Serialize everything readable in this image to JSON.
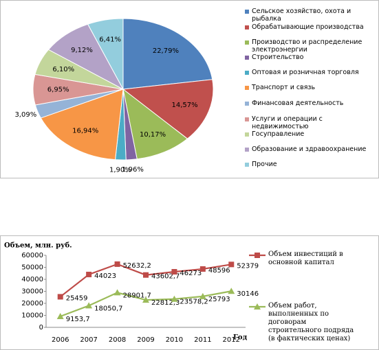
{
  "chart_data": [
    {
      "type": "pie",
      "categories": [
        "Сельское хозяйство, охота и рыбалка",
        "Обрабатывающие производства",
        "Производство и распределение электроэнергии",
        "Строительство",
        "Оптовая и розничная торговля",
        "Транспорт и связь",
        "Финансовая деятельность",
        "Услуги и операции с недвижимостью",
        "Госуправление",
        "Образование и здравоохранение",
        "Прочие"
      ],
      "values": [
        22.79,
        14.57,
        10.17,
        1.96,
        1.9,
        16.94,
        3.09,
        6.95,
        6.1,
        9.12,
        6.41
      ],
      "value_labels": [
        "22,79%",
        "14,57%",
        "10,17%",
        "1,96%",
        "1,90%",
        "16,94%",
        "3,09%",
        "6,95%",
        "6,10%",
        "9,12%",
        "6,41%"
      ],
      "colors": [
        "#4f81bd",
        "#c0504d",
        "#9bbb59",
        "#8064a2",
        "#4bacc6",
        "#f79646",
        "#95b3d7",
        "#d99694",
        "#c3d69b",
        "#b3a2c7",
        "#93cddd"
      ],
      "legend": "right"
    },
    {
      "type": "line",
      "y_label": "Объем, млн. руб.",
      "x_label": "Год",
      "categories": [
        "2006",
        "2007",
        "2008",
        "2009",
        "2010",
        "2011",
        "2012"
      ],
      "series": [
        {
          "name": "Объем инвестиций в основной капитал",
          "color": "#be4b48",
          "marker": "square",
          "values": [
            25459,
            44023,
            52632.2,
            43602.7,
            46273,
            48596,
            52379
          ],
          "value_labels": [
            "25459",
            "44023",
            "52632,2",
            "43602,7",
            "46273",
            "48596",
            "52379"
          ]
        },
        {
          "name": "Объем работ, выполненных по договорам строительного подряда (в фактических ценах)",
          "color": "#9bbb59",
          "marker": "triangle",
          "values": [
            9153.7,
            18050.7,
            28901.7,
            22812.3,
            23578.2,
            25793,
            30146
          ],
          "value_labels": [
            "9153,7",
            "18050,7",
            "28901,7",
            "22812,3",
            "23578,2",
            "25793",
            "30146"
          ]
        }
      ],
      "ylim": [
        0,
        60000
      ],
      "yticks": [
        0,
        10000,
        20000,
        30000,
        40000,
        50000,
        60000
      ],
      "legend": "right"
    }
  ]
}
